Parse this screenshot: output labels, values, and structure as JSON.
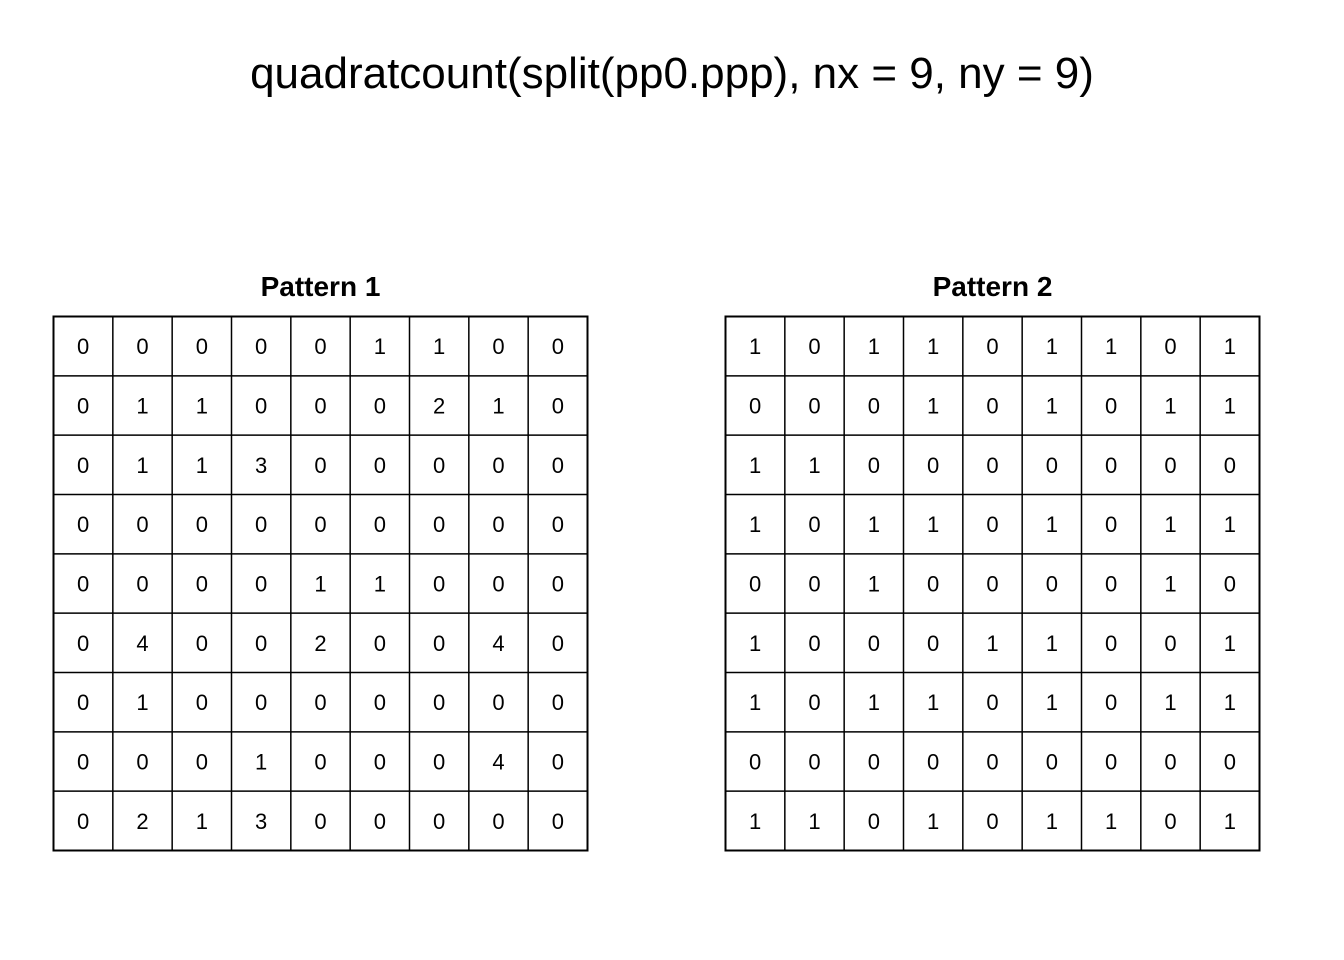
{
  "title": "quadratcount(split(pp0.ppp), nx = 9, ny = 9)",
  "chart_data": [
    {
      "type": "table",
      "title": "Pattern 1",
      "nrows": 9,
      "ncols": 9,
      "values": [
        [
          0,
          0,
          0,
          0,
          0,
          1,
          1,
          0,
          0
        ],
        [
          0,
          1,
          1,
          0,
          0,
          0,
          2,
          1,
          0
        ],
        [
          0,
          1,
          1,
          3,
          0,
          0,
          0,
          0,
          0
        ],
        [
          0,
          0,
          0,
          0,
          0,
          0,
          0,
          0,
          0
        ],
        [
          0,
          0,
          0,
          0,
          1,
          1,
          0,
          0,
          0
        ],
        [
          0,
          4,
          0,
          0,
          2,
          0,
          0,
          4,
          0
        ],
        [
          0,
          1,
          0,
          0,
          0,
          0,
          0,
          0,
          0
        ],
        [
          0,
          0,
          0,
          1,
          0,
          0,
          0,
          4,
          0
        ],
        [
          0,
          2,
          1,
          3,
          0,
          0,
          0,
          0,
          0
        ]
      ]
    },
    {
      "type": "table",
      "title": "Pattern 2",
      "nrows": 9,
      "ncols": 9,
      "values": [
        [
          1,
          0,
          1,
          1,
          0,
          1,
          1,
          0,
          1
        ],
        [
          0,
          0,
          0,
          1,
          0,
          1,
          0,
          1,
          1
        ],
        [
          1,
          1,
          0,
          0,
          0,
          0,
          0,
          0,
          0
        ],
        [
          1,
          0,
          1,
          1,
          0,
          1,
          0,
          1,
          1
        ],
        [
          0,
          0,
          1,
          0,
          0,
          0,
          0,
          1,
          0
        ],
        [
          1,
          0,
          0,
          0,
          1,
          1,
          0,
          0,
          1
        ],
        [
          1,
          0,
          1,
          1,
          0,
          1,
          0,
          1,
          1
        ],
        [
          0,
          0,
          0,
          0,
          0,
          0,
          0,
          0,
          0
        ],
        [
          1,
          1,
          0,
          1,
          0,
          1,
          1,
          0,
          1
        ]
      ]
    }
  ]
}
